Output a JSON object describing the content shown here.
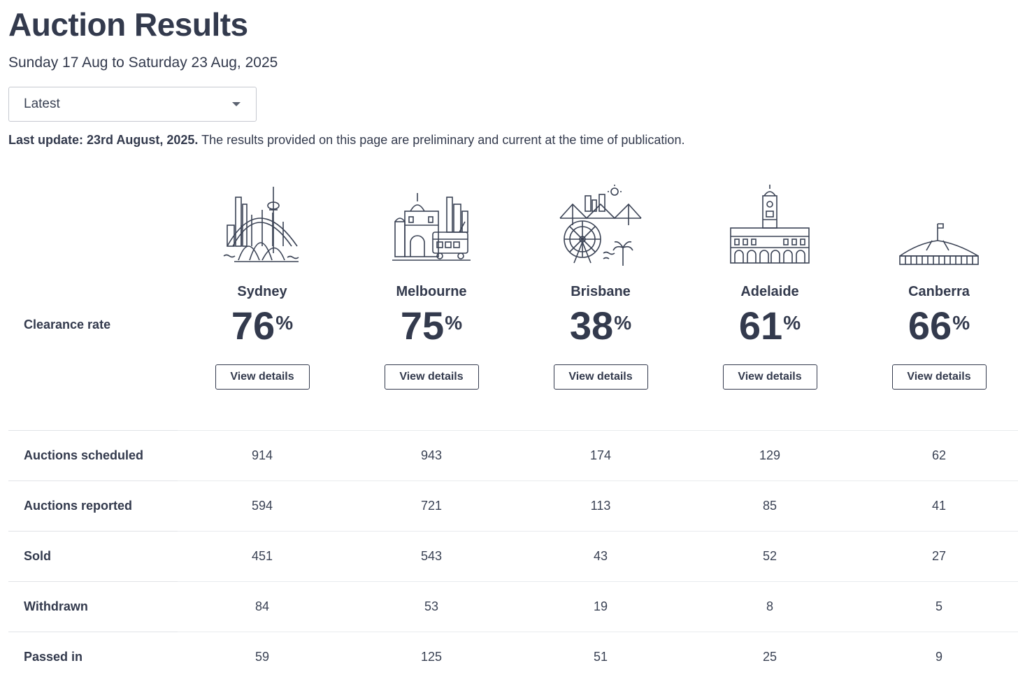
{
  "header": {
    "title": "Auction Results",
    "date_range": "Sunday 17 Aug to Saturday 23 Aug, 2025"
  },
  "period_select": {
    "selected": "Latest"
  },
  "update": {
    "bold": "Last update: 23rd August, 2025.",
    "text": " The results provided on this page are preliminary and current at the time of publication."
  },
  "clearance_label": "Clearance rate",
  "percent_sign": "%",
  "cities": [
    {
      "name": "Sydney",
      "rate": "76",
      "button": "View details",
      "icon": "sydney-skyline-icon"
    },
    {
      "name": "Melbourne",
      "rate": "75",
      "button": "View details",
      "icon": "melbourne-skyline-icon"
    },
    {
      "name": "Brisbane",
      "rate": "38",
      "button": "View details",
      "icon": "brisbane-skyline-icon"
    },
    {
      "name": "Adelaide",
      "rate": "61",
      "button": "View details",
      "icon": "adelaide-townhall-icon"
    },
    {
      "name": "Canberra",
      "rate": "66",
      "button": "View details",
      "icon": "canberra-parliament-icon"
    }
  ],
  "stats": [
    {
      "label": "Auctions scheduled",
      "values": [
        "914",
        "943",
        "174",
        "129",
        "62"
      ]
    },
    {
      "label": "Auctions reported",
      "values": [
        "594",
        "721",
        "113",
        "85",
        "41"
      ]
    },
    {
      "label": "Sold",
      "values": [
        "451",
        "543",
        "43",
        "52",
        "27"
      ]
    },
    {
      "label": "Withdrawn",
      "values": [
        "84",
        "53",
        "19",
        "8",
        "5"
      ]
    },
    {
      "label": "Passed in",
      "values": [
        "59",
        "125",
        "51",
        "25",
        "9"
      ]
    }
  ],
  "colors": {
    "text": "#333a4d",
    "border": "#c6c9d0",
    "rule": "#e1e3e7"
  }
}
